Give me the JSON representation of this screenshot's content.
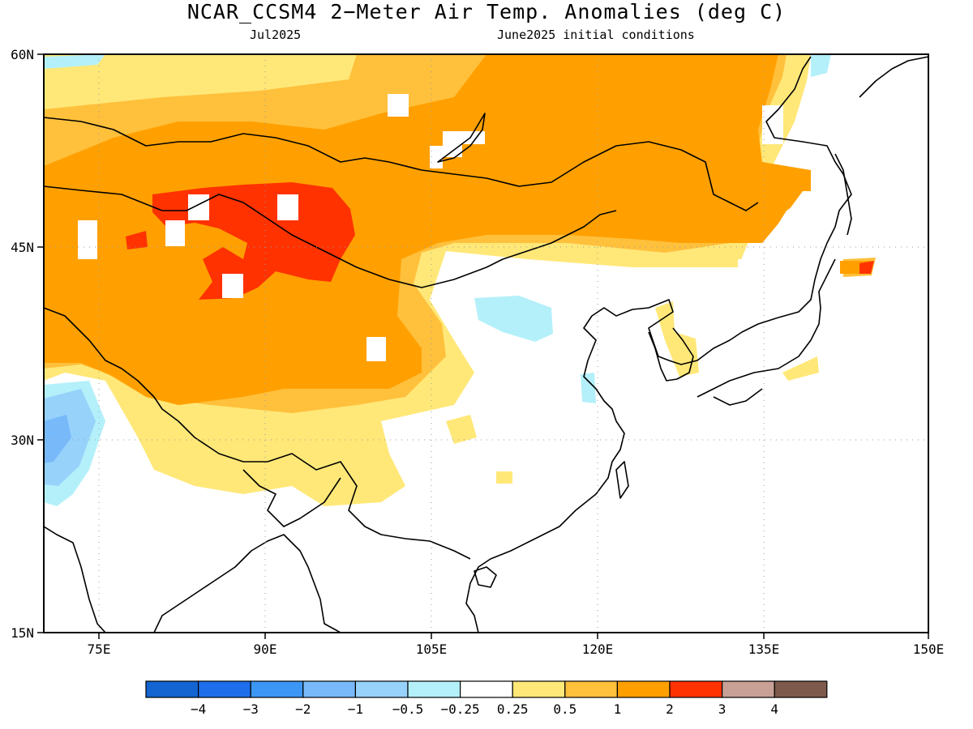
{
  "title": "NCAR_CCSM4 2−Meter Air Temp. Anomalies (deg C)",
  "subtitle_left": "Jul2025",
  "subtitle_right": "June2025 initial conditions",
  "map": {
    "region": "East & Central Asia",
    "lon_range": [
      70,
      150
    ],
    "lat_range": [
      15,
      60
    ],
    "lon_ticks": [
      "75E",
      "90E",
      "105E",
      "120E",
      "135E",
      "150E"
    ],
    "lat_ticks": [
      "60N",
      "45N",
      "30N",
      "15N"
    ],
    "gridlines": "dotted"
  },
  "legend": {
    "colors": [
      "#1464d2",
      "#1e6eeb",
      "#3c96f5",
      "#78b9fa",
      "#96d2fa",
      "#b4f0fa",
      "#ffffff",
      "#ffe878",
      "#ffc03c",
      "#ffa000",
      "#ff3200",
      "#c8a096",
      "#7d5a4b"
    ],
    "labels": [
      "−4",
      "−3",
      "−2",
      "−1",
      "−0.5",
      "−0.25",
      "0.25",
      "0.5",
      "1",
      "2",
      "3",
      "4"
    ]
  }
}
